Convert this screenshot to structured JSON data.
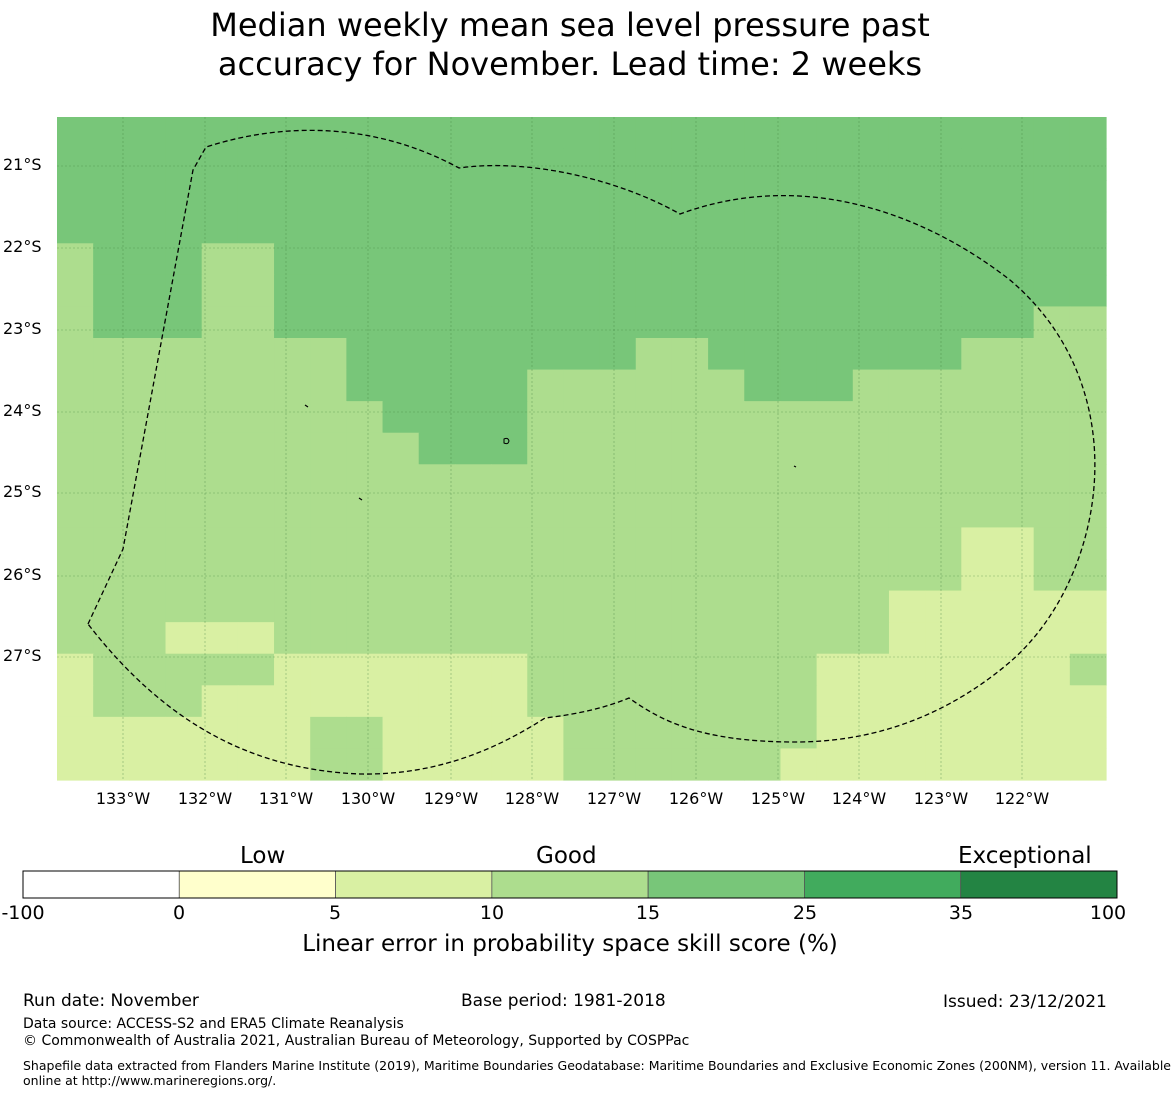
{
  "title_line1": "Median weekly mean sea level pressure past",
  "title_line2": "accuracy for November. Lead time: 2 weeks",
  "colors": {
    "low": "#ffffcc",
    "c5_10": "#d9f0a3",
    "c10_15": "#addd8e",
    "c15_25": "#78c679",
    "c25_35": "#41ab5d",
    "c35_100": "#238443",
    "below0": "#ffffff"
  },
  "lat_labels": [
    "21°S",
    "22°S",
    "23°S",
    "24°S",
    "25°S",
    "26°S",
    "27°S"
  ],
  "lon_labels": [
    "133°W",
    "132°W",
    "131°W",
    "130°W",
    "129°W",
    "128°W",
    "127°W",
    "126°W",
    "125°W",
    "124°W",
    "123°W",
    "122°W"
  ],
  "skill_grid_pct_class": {
    "legend": "1 = 5-10 %, 2 = 10-15 %, 3 = 15-25 %",
    "rows": [
      "33333333333333333333333333333",
      "33333333333333333333333333333",
      "33333333333333333333333333333",
      "33333333333333333333333333333",
      "23332233333333333333333333333",
      "23332233333333333333333333333",
      "23332233333333333333333333322",
      "22222222333333332233333332222",
      "22222222333332222223332222222",
      "22222222233332222222222222222",
      "22222222223332222222222222222",
      "22222222222222222222222222222",
      "22222222222222222222222222222",
      "22222222222222222222222221122",
      "22222222222222222222222221122",
      "22222222222222222222222111111",
      "22211122222222222222222111111",
      "12222211111112222222211111112",
      "12221111111112222222211111111",
      "11111112211111222222211111111",
      "11111112211111222222111111111"
    ]
  },
  "colorbar": {
    "categories": [
      "Low",
      "Good",
      "Exceptional"
    ],
    "ticks": [
      "-100",
      "0",
      "5",
      "10",
      "15",
      "25",
      "35",
      "100"
    ],
    "title": "Linear error in probability space skill score (%)"
  },
  "footer": {
    "run_date": "Run date: November",
    "base_period": "Base period: 1981-2018",
    "issued": "Issued: 23/12/2021",
    "data_source": "Data source: ACCESS-S2 and ERA5 Climate Reanalysis",
    "copyright": "© Commonwealth of Australia 2021, Australian Bureau of Meteorology, Supported by COSPPac",
    "shapefile_line1": "Shapefile data extracted from Flanders Marine Institute (2019), Maritime Boundaries Geodatabase: Maritime Boundaries and Exclusive Economic Zones (200NM), version 11. Available",
    "shapefile_line2": "online at http://www.marineregions.org/."
  }
}
